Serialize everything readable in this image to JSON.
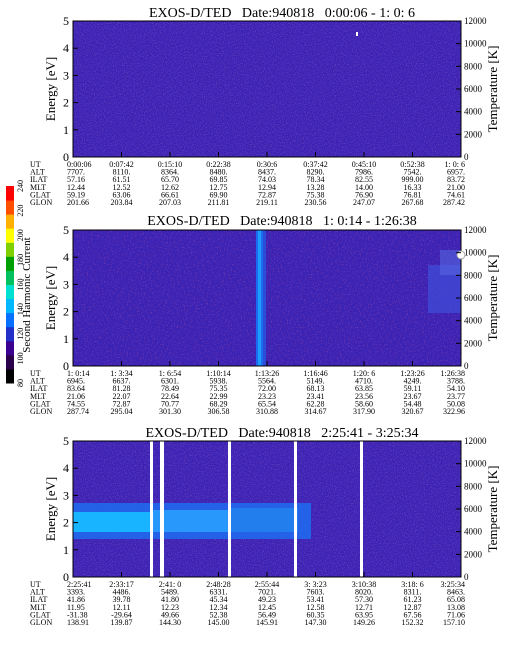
{
  "colorbar": {
    "label": "Second Harmonic Current",
    "ticks": [
      "80",
      "100",
      "120",
      "140",
      "160",
      "180",
      "200",
      "220",
      "240"
    ],
    "colors": [
      "#000000",
      "#2a004a",
      "#3a0090",
      "#2030c8",
      "#0870ff",
      "#00b8ff",
      "#00e0d0",
      "#00c060",
      "#00a000",
      "#80d000",
      "#ffff00",
      "#ffb000",
      "#ff5000",
      "#ff0000"
    ]
  },
  "chart_data": [
    {
      "type": "heatmap",
      "title": "EXOS-D/TED   Date:940818   0:00:06 - 1: 0: 6",
      "ylabel": "Energy [eV]",
      "y2label": "Temperature [K]",
      "ylim": [
        0,
        5
      ],
      "y_ticks": [
        "0",
        "1",
        "2",
        "3",
        "4",
        "5"
      ],
      "y2lim": [
        0,
        12000
      ],
      "y2_ticks": [
        "0",
        "2000",
        "4000",
        "6000",
        "8000",
        "10000",
        "12000"
      ],
      "row_labels": [
        "UT",
        "ALT",
        "ILAT",
        "MLT",
        "GLAT",
        "GLON"
      ],
      "columns": [
        [
          "0:00:06",
          "7707.",
          "57.16",
          "12.44",
          "59.19",
          "201.66"
        ],
        [
          "0:07:42",
          "8110.",
          "61.51",
          "12.52",
          "63.06",
          "203.84"
        ],
        [
          "0:15:10",
          "8364.",
          "65.70",
          "12.62",
          "66.61",
          "207.03"
        ],
        [
          "0:22:38",
          "8480.",
          "69.85",
          "12.75",
          "69.90",
          "211.81"
        ],
        [
          "0:30:6",
          "8437.",
          "74.03",
          "12.94",
          "72.87",
          "219.11"
        ],
        [
          "0:37:42",
          "8290.",
          "78.34",
          "13.28",
          "75.38",
          "230.56"
        ],
        [
          "0:45:10",
          "7986.",
          "82.55",
          "14.00",
          "76.90",
          "247.07"
        ],
        [
          "0:52:38",
          "7542.",
          "999.00",
          "16.33",
          "76.81",
          "267.68"
        ],
        [
          "1: 0: 6",
          "6957.",
          "83.72",
          "21.00",
          "74.61",
          "287.42"
        ]
      ]
    },
    {
      "type": "heatmap",
      "title": "EXOS-D/TED   Date:940818   1: 0:14 - 1:26:38",
      "ylabel": "Energy [eV]",
      "y2label": "Temperature [K]",
      "ylim": [
        0,
        5
      ],
      "y_ticks": [
        "0",
        "1",
        "2",
        "3",
        "4",
        "5"
      ],
      "y2lim": [
        0,
        12000
      ],
      "y2_ticks": [
        "0",
        "2000",
        "4000",
        "6000",
        "8000",
        "10000",
        "12000"
      ],
      "row_labels": [
        "UT",
        "ALT",
        "ILAT",
        "MLT",
        "GLAT",
        "GLON"
      ],
      "columns": [
        [
          "1: 0:14",
          "6945.",
          "83.64",
          "21.06",
          "74.55",
          "287.74"
        ],
        [
          "1: 3:34",
          "6637.",
          "81.28",
          "22.07",
          "72.87",
          "295.04"
        ],
        [
          "1: 6:54",
          "6301.",
          "78.49",
          "22.64",
          "70.77",
          "301.30"
        ],
        [
          "1:10:14",
          "5938.",
          "75.35",
          "22.99",
          "68.29",
          "306.58"
        ],
        [
          "1:13:26",
          "5564.",
          "72.00",
          "23.23",
          "65.54",
          "310.88"
        ],
        [
          "1:16:46",
          "5149.",
          "68.13",
          "23.41",
          "62.28",
          "314.67"
        ],
        [
          "1:20: 6",
          "4710.",
          "63.85",
          "23.56",
          "58.60",
          "317.90"
        ],
        [
          "1:23:26",
          "4249.",
          "59.11",
          "23.67",
          "54.48",
          "320.67"
        ],
        [
          "1:26:38",
          "3788.",
          "54.10",
          "23.77",
          "50.08",
          "322.96"
        ]
      ]
    },
    {
      "type": "heatmap",
      "title": "EXOS-D/TED   Date:940818   2:25:41 - 3:25:34",
      "ylabel": "Energy [eV]",
      "y2label": "Temperature [K]",
      "ylim": [
        0,
        5
      ],
      "y_ticks": [
        "0",
        "1",
        "2",
        "3",
        "4",
        "5"
      ],
      "y2lim": [
        0,
        12000
      ],
      "y2_ticks": [
        "0",
        "2000",
        "4000",
        "6000",
        "8000",
        "10000",
        "12000"
      ],
      "row_labels": [
        "UT",
        "ALT",
        "ILAT",
        "MLT",
        "GLAT",
        "GLON"
      ],
      "columns": [
        [
          "2:25:41",
          "3393.",
          "41.86",
          "11.95",
          "-31.38",
          "138.91"
        ],
        [
          "2:33:17",
          "4486.",
          "39.78",
          "12.11",
          "-29.64",
          "139.87"
        ],
        [
          "2:41: 0",
          "5489.",
          "41.80",
          "12.23",
          "49.66",
          "144.30"
        ],
        [
          "2:48:28",
          "6331.",
          "45.34",
          "12.34",
          "52.38",
          "145.00"
        ],
        [
          "2:55:44",
          "7021.",
          "49.23",
          "12.45",
          "56.49",
          "145.91"
        ],
        [
          "3: 3:23",
          "7603.",
          "53.41",
          "12.58",
          "60.35",
          "147.30"
        ],
        [
          "3:10:38",
          "8020.",
          "57.30",
          "12.71",
          "63.95",
          "149.26"
        ],
        [
          "3:18: 6",
          "8311.",
          "61.23",
          "12.87",
          "67.56",
          "152.32"
        ],
        [
          "3:25:34",
          "8463.",
          "65.08",
          "13.08",
          "71.06",
          "157.10"
        ]
      ]
    }
  ]
}
